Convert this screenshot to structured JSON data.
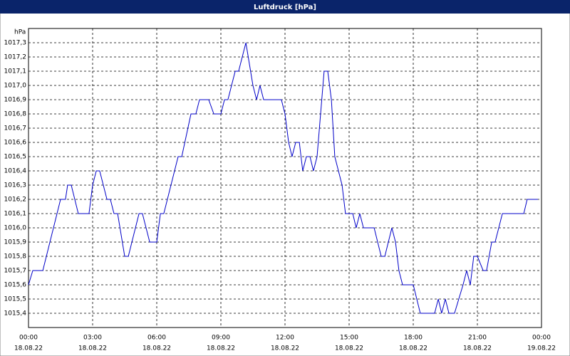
{
  "chart_data": {
    "type": "line",
    "title": "Luftdruck [hPa]",
    "y_unit": "hPa",
    "xlim": [
      0,
      24
    ],
    "xticks": [
      {
        "value": 0,
        "label": "00:00",
        "date": "18.08.22"
      },
      {
        "value": 3,
        "label": "03:00",
        "date": "18.08.22"
      },
      {
        "value": 6,
        "label": "06:00",
        "date": "18.08.22"
      },
      {
        "value": 9,
        "label": "09:00",
        "date": "18.08.22"
      },
      {
        "value": 12,
        "label": "12:00",
        "date": "18.08.22"
      },
      {
        "value": 15,
        "label": "15:00",
        "date": "18.08.22"
      },
      {
        "value": 18,
        "label": "18:00",
        "date": "18.08.22"
      },
      {
        "value": 21,
        "label": "21:00",
        "date": "18.08.22"
      },
      {
        "value": 24,
        "label": "00:00",
        "date": "19.08.22"
      }
    ],
    "ylim": [
      1015.3,
      1017.4
    ],
    "yticks": [
      {
        "value": 1015.4,
        "label": "1015,4"
      },
      {
        "value": 1015.5,
        "label": "1015,5"
      },
      {
        "value": 1015.6,
        "label": "1015,6"
      },
      {
        "value": 1015.7,
        "label": "1015,7"
      },
      {
        "value": 1015.8,
        "label": "1015,8"
      },
      {
        "value": 1015.9,
        "label": "1015,9"
      },
      {
        "value": 1016.0,
        "label": "1016,0"
      },
      {
        "value": 1016.1,
        "label": "1016,1"
      },
      {
        "value": 1016.2,
        "label": "1016,2"
      },
      {
        "value": 1016.3,
        "label": "1016,3"
      },
      {
        "value": 1016.4,
        "label": "1016,4"
      },
      {
        "value": 1016.5,
        "label": "1016,5"
      },
      {
        "value": 1016.6,
        "label": "1016,6"
      },
      {
        "value": 1016.7,
        "label": "1016,7"
      },
      {
        "value": 1016.8,
        "label": "1016,8"
      },
      {
        "value": 1016.9,
        "label": "1016,9"
      },
      {
        "value": 1017.0,
        "label": "1017,0"
      },
      {
        "value": 1017.1,
        "label": "1017,1"
      },
      {
        "value": 1017.2,
        "label": "1017,2"
      },
      {
        "value": 1017.3,
        "label": "1017,3"
      }
    ],
    "grid": true,
    "series": [
      {
        "color": "#0000c8",
        "x": [
          0,
          0.2,
          0.67,
          1.5,
          1.73,
          1.83,
          2.0,
          2.33,
          2.83,
          3.0,
          3.17,
          3.33,
          3.67,
          3.83,
          4.0,
          4.17,
          4.5,
          4.67,
          5.17,
          5.33,
          5.67,
          6.0,
          6.17,
          6.33,
          7.0,
          7.17,
          7.6,
          7.83,
          8.0,
          8.43,
          8.67,
          9.0,
          9.17,
          9.33,
          9.67,
          9.83,
          10.17,
          10.5,
          10.67,
          10.83,
          11.0,
          11.83,
          12.0,
          12.17,
          12.33,
          12.5,
          12.67,
          12.83,
          13.0,
          13.17,
          13.33,
          13.5,
          13.83,
          14.0,
          14.17,
          14.33,
          14.67,
          14.83,
          15.17,
          15.33,
          15.5,
          15.67,
          16.17,
          16.5,
          16.67,
          17.0,
          17.17,
          17.33,
          17.5,
          18.0,
          18.33,
          19.0,
          19.17,
          19.33,
          19.5,
          19.67,
          19.93,
          20.33,
          20.5,
          20.67,
          20.83,
          21.0,
          21.27,
          21.43,
          21.67,
          21.83,
          22.17,
          23.17,
          23.33,
          23.83
        ],
        "values": [
          1015.6,
          1015.7,
          1015.7,
          1016.2,
          1016.2,
          1016.3,
          1016.3,
          1016.1,
          1016.1,
          1016.3,
          1016.4,
          1016.4,
          1016.2,
          1016.2,
          1016.1,
          1016.1,
          1015.8,
          1015.8,
          1016.1,
          1016.1,
          1015.9,
          1015.9,
          1016.1,
          1016.1,
          1016.5,
          1016.5,
          1016.8,
          1016.8,
          1016.9,
          1016.9,
          1016.8,
          1016.8,
          1016.9,
          1016.9,
          1017.1,
          1017.1,
          1017.3,
          1017.0,
          1016.9,
          1017.0,
          1016.9,
          1016.9,
          1016.8,
          1016.6,
          1016.5,
          1016.6,
          1016.6,
          1016.4,
          1016.5,
          1016.5,
          1016.4,
          1016.5,
          1017.1,
          1017.1,
          1016.9,
          1016.5,
          1016.3,
          1016.1,
          1016.1,
          1016.0,
          1016.1,
          1016.0,
          1016.0,
          1015.8,
          1015.8,
          1016.0,
          1015.9,
          1015.7,
          1015.6,
          1015.6,
          1015.4,
          1015.4,
          1015.5,
          1015.4,
          1015.5,
          1015.4,
          1015.4,
          1015.6,
          1015.7,
          1015.6,
          1015.8,
          1015.8,
          1015.7,
          1015.7,
          1015.9,
          1015.9,
          1016.1,
          1016.1,
          1016.2,
          1016.2
        ]
      }
    ]
  }
}
